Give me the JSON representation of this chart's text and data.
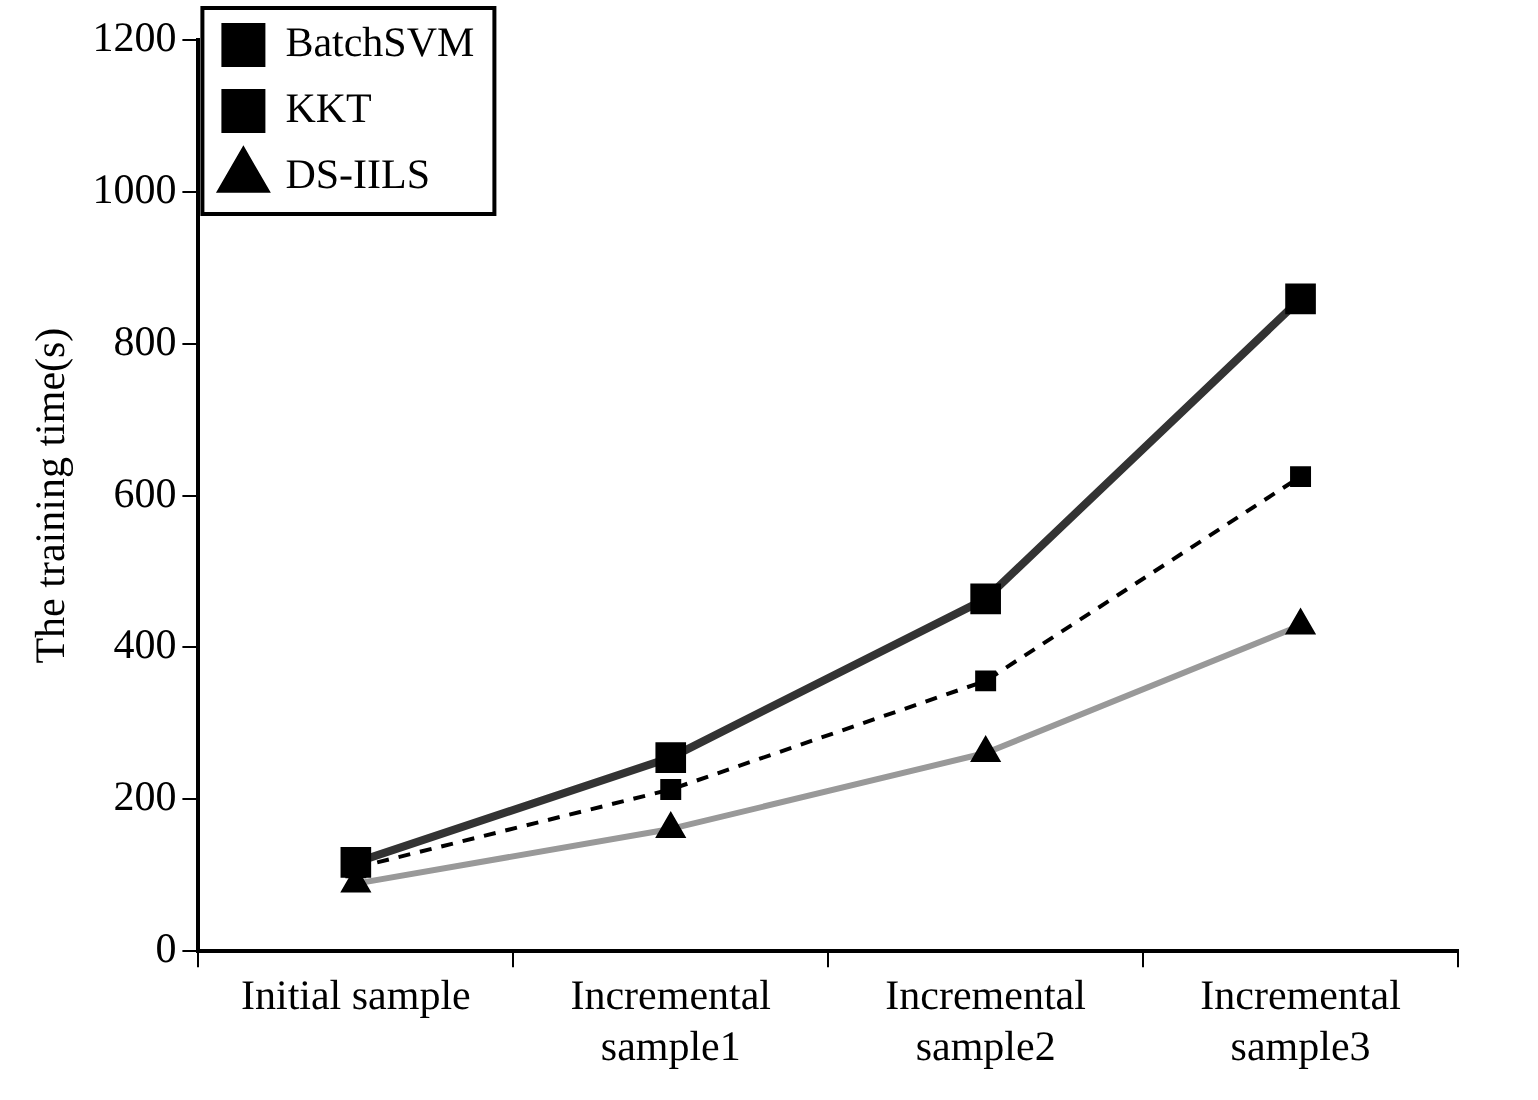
{
  "chart_data": {
    "type": "line",
    "ylabel": "The training time(s)",
    "categories": [
      "Initial sample",
      "Incremental\nsample1",
      "Incremental\nsample2",
      "Incremental\nsample3"
    ],
    "series": [
      {
        "name": "BatchSVM",
        "color": "#333333",
        "values": [
          117,
          255,
          464,
          859
        ],
        "marker": "square",
        "line_style": "solid"
      },
      {
        "name": "KKT",
        "color": "#000000",
        "values": [
          110,
          213,
          356,
          625
        ],
        "marker": "square",
        "line_style": "dashed"
      },
      {
        "name": "DS-IILS",
        "color": "#999999",
        "values": [
          89,
          161,
          261,
          429
        ],
        "marker": "triangle",
        "line_style": "solid"
      }
    ],
    "ylim": [
      0,
      1200
    ],
    "yticks": [
      0,
      200,
      400,
      600,
      800,
      1000,
      1200
    ],
    "grid": false,
    "legend": "top left"
  }
}
